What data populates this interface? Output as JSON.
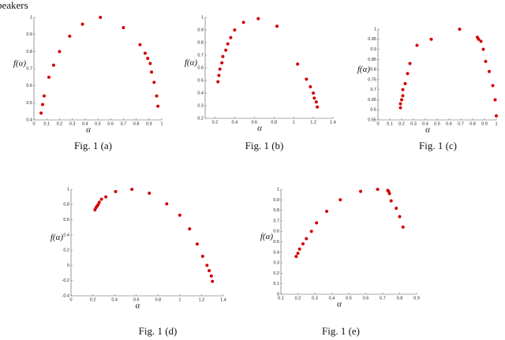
{
  "header": {
    "text": "beakers"
  },
  "chart_data": [
    {
      "type": "scatter",
      "caption": "Fig. 1 (a)",
      "xlabel": "α",
      "ylabel": "f(α)",
      "color": "#d40000",
      "xlim": [
        0,
        1
      ],
      "xticks": [
        0,
        0.1,
        0.2,
        0.3,
        0.4,
        0.5,
        0.6,
        0.7,
        0.8,
        0.9,
        1
      ],
      "ylim": [
        0.4,
        1
      ],
      "yticks": [
        0.4,
        0.5,
        0.6,
        0.7,
        0.8,
        0.9,
        1
      ],
      "x": [
        0.056,
        0.068,
        0.08,
        0.117,
        0.154,
        0.2,
        0.28,
        0.38,
        0.52,
        0.7,
        0.83,
        0.87,
        0.89,
        0.91,
        0.92,
        0.94,
        0.96,
        0.97
      ],
      "values": [
        0.44,
        0.49,
        0.54,
        0.65,
        0.72,
        0.8,
        0.89,
        0.96,
        1.0,
        0.94,
        0.84,
        0.79,
        0.76,
        0.73,
        0.68,
        0.62,
        0.54,
        0.48
      ]
    },
    {
      "type": "scatter",
      "caption": "Fig. 1 (b)",
      "xlabel": "α",
      "ylabel": "f(α)",
      "color": "#d40000",
      "xlim": [
        0.1,
        1.4
      ],
      "xticks": [
        0.2,
        0.4,
        0.6,
        0.8,
        1,
        1.2,
        1.4
      ],
      "ylim": [
        0.2,
        1
      ],
      "yticks": [
        0.2,
        0.3,
        0.4,
        0.5,
        0.6,
        0.7,
        0.8,
        0.9,
        1
      ],
      "x": [
        0.23,
        0.24,
        0.25,
        0.27,
        0.28,
        0.31,
        0.33,
        0.36,
        0.4,
        0.49,
        0.64,
        0.83,
        1.04,
        1.13,
        1.17,
        1.2,
        1.21,
        1.23,
        1.24
      ],
      "values": [
        0.49,
        0.54,
        0.59,
        0.64,
        0.69,
        0.74,
        0.79,
        0.84,
        0.9,
        0.96,
        0.99,
        0.93,
        0.63,
        0.51,
        0.45,
        0.4,
        0.36,
        0.33,
        0.29
      ]
    },
    {
      "type": "scatter",
      "caption": "Fig. 1 (c)",
      "xlabel": "α",
      "ylabel": "f(α)",
      "color": "#d40000",
      "xlim": [
        0,
        1
      ],
      "xticks": [
        0,
        0.1,
        0.2,
        0.3,
        0.4,
        0.5,
        0.6,
        0.7,
        0.8,
        0.9,
        1
      ],
      "ylim": [
        0.55,
        1
      ],
      "yticks": [
        0.55,
        0.6,
        0.65,
        0.7,
        0.75,
        0.8,
        0.85,
        0.9,
        0.95,
        1
      ],
      "x": [
        0.19,
        0.19,
        0.2,
        0.21,
        0.21,
        0.23,
        0.25,
        0.27,
        0.33,
        0.45,
        0.69,
        0.84,
        0.85,
        0.87,
        0.89,
        0.91,
        0.94,
        0.97,
        0.99,
        1.0
      ],
      "values": [
        0.61,
        0.63,
        0.65,
        0.67,
        0.7,
        0.73,
        0.78,
        0.83,
        0.92,
        0.95,
        1.0,
        0.96,
        0.95,
        0.94,
        0.9,
        0.84,
        0.79,
        0.72,
        0.65,
        0.57
      ]
    },
    {
      "type": "scatter",
      "caption": "Fig. 1 (d)",
      "xlabel": "α",
      "ylabel": "f(α)",
      "color": "#d40000",
      "xlim": [
        0,
        1.4
      ],
      "xticks": [
        0,
        0.2,
        0.4,
        0.6,
        0.8,
        1,
        1.2,
        1.4
      ],
      "ylim": [
        -0.4,
        1
      ],
      "yticks": [
        -0.4,
        -0.2,
        0,
        0.2,
        0.4,
        0.6,
        0.8,
        1
      ],
      "x": [
        0.22,
        0.23,
        0.24,
        0.25,
        0.26,
        0.28,
        0.32,
        0.41,
        0.56,
        0.72,
        0.88,
        1.0,
        1.09,
        1.16,
        1.21,
        1.25,
        1.27,
        1.29,
        1.3
      ],
      "values": [
        0.73,
        0.76,
        0.78,
        0.8,
        0.83,
        0.87,
        0.9,
        0.97,
        1.0,
        0.95,
        0.81,
        0.66,
        0.48,
        0.28,
        0.12,
        0.0,
        -0.07,
        -0.14,
        -0.21
      ]
    },
    {
      "type": "scatter",
      "caption": "Fig. 1 (e)",
      "xlabel": "α",
      "ylabel": "f(α)",
      "color": "#d40000",
      "xlim": [
        0.1,
        0.9
      ],
      "xticks": [
        0.1,
        0.2,
        0.3,
        0.4,
        0.5,
        0.6,
        0.7,
        0.8,
        0.9
      ],
      "ylim": [
        0,
        1
      ],
      "yticks": [
        0,
        0.1,
        0.2,
        0.3,
        0.4,
        0.5,
        0.6,
        0.7,
        0.8,
        0.9,
        1
      ],
      "x": [
        0.19,
        0.2,
        0.21,
        0.23,
        0.25,
        0.28,
        0.31,
        0.37,
        0.45,
        0.57,
        0.67,
        0.73,
        0.735,
        0.74,
        0.75,
        0.78,
        0.8,
        0.82
      ],
      "values": [
        0.36,
        0.39,
        0.43,
        0.48,
        0.53,
        0.6,
        0.68,
        0.79,
        0.9,
        0.98,
        1.0,
        0.99,
        0.98,
        0.96,
        0.89,
        0.82,
        0.74,
        0.64
      ]
    }
  ]
}
